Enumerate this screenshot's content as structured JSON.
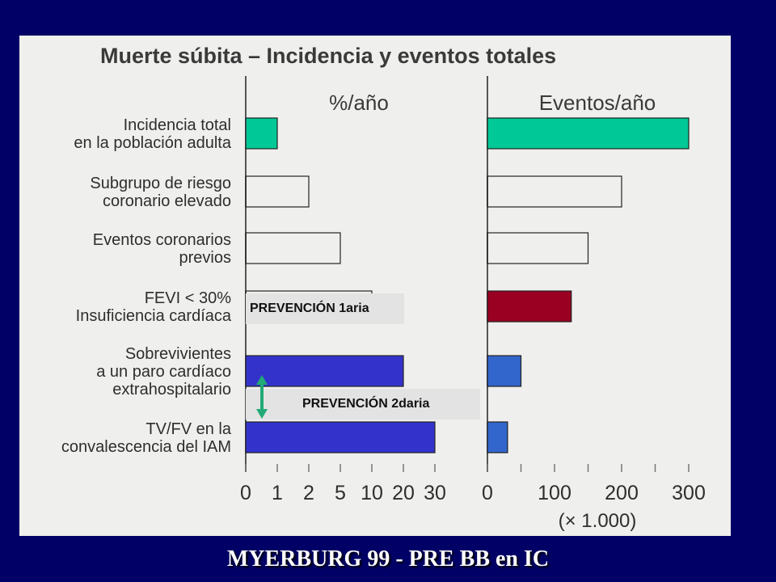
{
  "footer": "MYERBURG 99 - PRE BB en IC",
  "chart_data": {
    "type": "bar",
    "title": "Muerte súbita – Incidencia y eventos totales",
    "categories": [
      [
        "Incidencia total",
        "en la población adulta"
      ],
      [
        "Subgrupo de riesgo",
        "coronario elevado"
      ],
      [
        "Eventos coronarios",
        "previos"
      ],
      [
        "FEVI < 30%",
        "Insuficiencia cardíaca"
      ],
      [
        "Sobrevivientes",
        "a un paro cardíaco",
        "extrahospitalario"
      ],
      [
        "TV/FV en la",
        "convalescencia del IAM"
      ]
    ],
    "panels": [
      {
        "name": "%/año",
        "scale": "nonlinear",
        "ticks": [
          "0",
          "1",
          "2",
          "5",
          "10",
          "20",
          "30"
        ],
        "tick_values": [
          0,
          1,
          2,
          5,
          10,
          20,
          30
        ],
        "values": [
          1,
          2,
          5,
          10,
          20,
          30
        ],
        "colors": [
          "#00c896",
          "none",
          "none",
          "none",
          "#3333cc",
          "#3333cc"
        ]
      },
      {
        "name": "Eventos/año",
        "scale": "linear",
        "ticks": [
          "0",
          "100",
          "200",
          "300"
        ],
        "tick_values": [
          0,
          100,
          200,
          300
        ],
        "unit_note": "(× 1.000)",
        "values": [
          300,
          200,
          150,
          125,
          50,
          30
        ],
        "colors": [
          "#00c896",
          "none",
          "none",
          "#990022",
          "#3366cc",
          "#3366cc"
        ]
      }
    ],
    "annotations": [
      "PREVENCIÓN 1aria",
      "PREVENCIÓN  2daria"
    ]
  }
}
